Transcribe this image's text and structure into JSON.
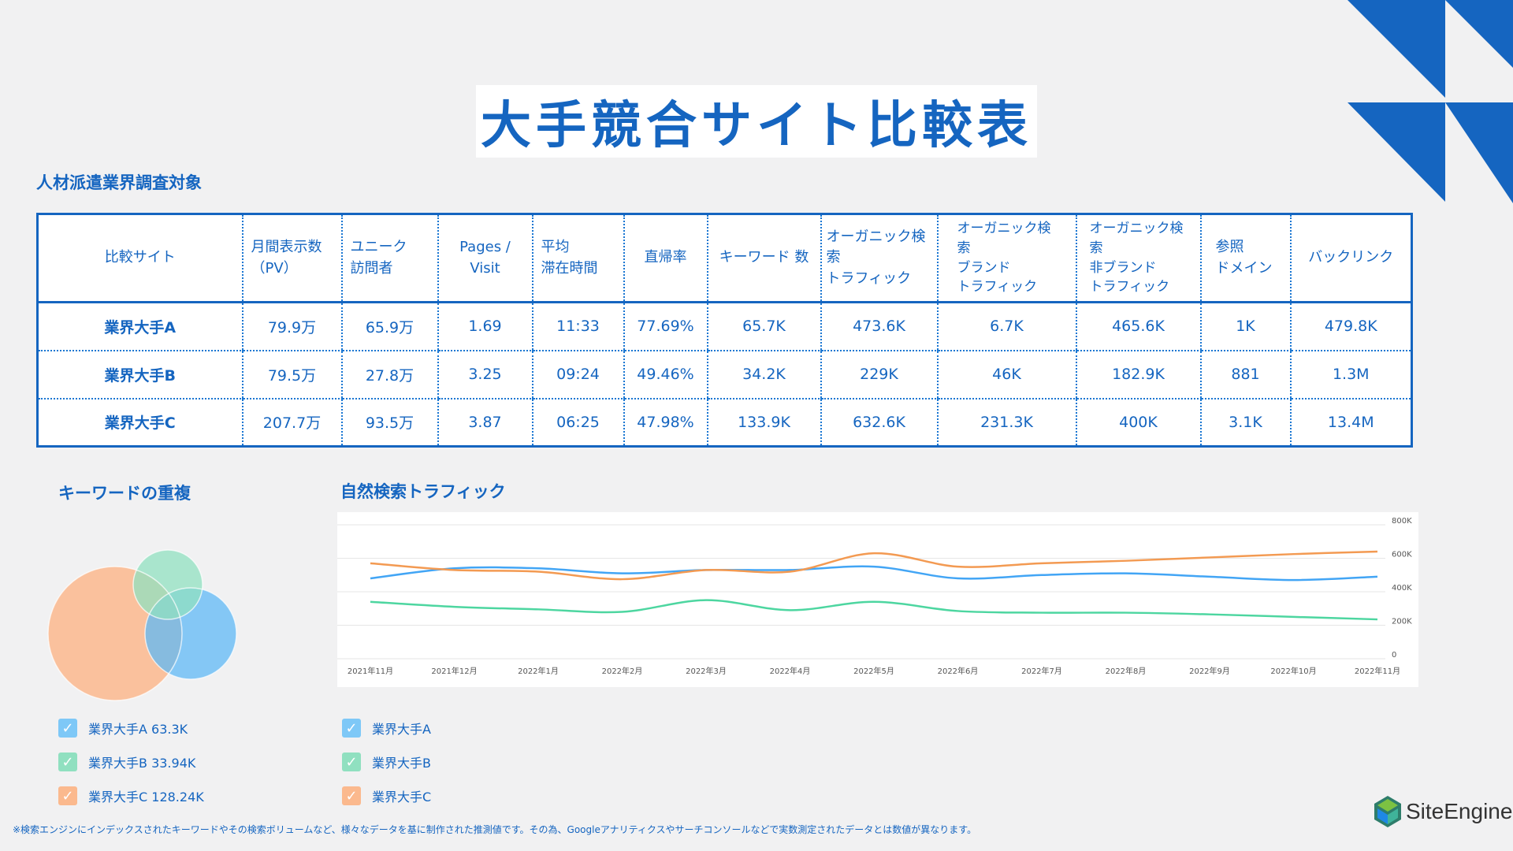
{
  "title": "大手競合サイト比較表",
  "subtitle": "人材派遣業界調査対象",
  "table": {
    "headers": [
      "比較サイト",
      "月間表示数\n（PV）",
      "ユニーク\n訪問者",
      "Pages /\nVisit",
      "平均\n滞在時間",
      "直帰率",
      "キーワード 数",
      "オーガニック検索\nトラフィック",
      "オーガニック検索\nブランド\nトラフィック",
      "オーガニック検索\n非ブランド\nトラフィック",
      "参照\nドメイン",
      "バックリンク"
    ],
    "rows": [
      [
        "業界大手A",
        "79.9万",
        "65.9万",
        "1.69",
        "11:33",
        "77.69%",
        "65.7K",
        "473.6K",
        "6.7K",
        "465.6K",
        "1K",
        "479.8K"
      ],
      [
        "業界大手B",
        "79.5万",
        "27.8万",
        "3.25",
        "09:24",
        "49.46%",
        "34.2K",
        "229K",
        "46K",
        "182.9K",
        "881",
        "1.3M"
      ],
      [
        "業界大手C",
        "207.7万",
        "93.5万",
        "3.87",
        "06:25",
        "47.98%",
        "133.9K",
        "632.6K",
        "231.3K",
        "400K",
        "3.1K",
        "13.4M"
      ]
    ]
  },
  "venn": {
    "heading": "キーワードの重複",
    "legend": [
      {
        "label": "業界大手A  63.3K",
        "color": "#7ec8f7"
      },
      {
        "label": "業界大手B 33.94K",
        "color": "#90e0c0"
      },
      {
        "label": "業界大手C 128.24K",
        "color": "#fbb98e"
      }
    ]
  },
  "traffic": {
    "heading": "自然検索トラフィック",
    "legend": [
      {
        "label": "業界大手A",
        "color": "#7ec8f7"
      },
      {
        "label": "業界大手B",
        "color": "#90e0c0"
      },
      {
        "label": "業界大手C",
        "color": "#fbb98e"
      }
    ]
  },
  "chart_data": {
    "type": "line",
    "x": [
      "2021年11月",
      "2021年12月",
      "2022年1月",
      "2022年2月",
      "2022年3月",
      "2022年4月",
      "2022年5月",
      "2022年6月",
      "2022年7月",
      "2022年8月",
      "2022年9月",
      "2022年10月",
      "2022年11月"
    ],
    "yticks": [
      "800K",
      "600K",
      "400K",
      "200K",
      "0"
    ],
    "ylim": [
      0,
      800000
    ],
    "series": [
      {
        "name": "業界大手A",
        "color": "#42a5f5",
        "values": [
          480000,
          540000,
          540000,
          510000,
          530000,
          530000,
          550000,
          480000,
          500000,
          510000,
          490000,
          470000,
          490000
        ]
      },
      {
        "name": "業界大手B",
        "color": "#4dd6a0",
        "values": [
          340000,
          310000,
          295000,
          280000,
          350000,
          290000,
          340000,
          285000,
          275000,
          275000,
          265000,
          250000,
          235000
        ]
      },
      {
        "name": "業界大手C",
        "color": "#f39a52",
        "values": [
          570000,
          530000,
          520000,
          475000,
          530000,
          520000,
          630000,
          550000,
          570000,
          585000,
          605000,
          625000,
          640000
        ]
      }
    ]
  },
  "footnote": "※検索エンジンにインデックスされたキーワードやその検索ボリュームなど、様々なデータを基に制作された推測値です。その為、Googleアナリティクスやサーチコンソールなどで実数測定されたデータとは数値が異なります。",
  "logo": {
    "text": "SiteEngine"
  }
}
